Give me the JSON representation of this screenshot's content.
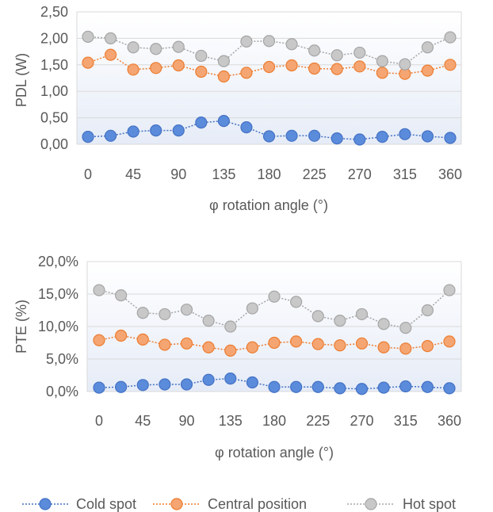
{
  "chart_data": [
    {
      "type": "line",
      "xlabel": "φ rotation angle (°)",
      "ylabel": "PDL (W)",
      "ylim": [
        0,
        2.5
      ],
      "yticks": [
        "0,00",
        "0,50",
        "1,00",
        "1,50",
        "2,00",
        "2,50"
      ],
      "xticks": [
        "0",
        "45",
        "90",
        "135",
        "180",
        "225",
        "270",
        "315",
        "360"
      ],
      "x": [
        0,
        22.5,
        45,
        67.5,
        90,
        112.5,
        135,
        157.5,
        180,
        202.5,
        225,
        247.5,
        270,
        292.5,
        315,
        337.5,
        360
      ],
      "grid": true,
      "series": [
        {
          "name": "Cold spot",
          "values": [
            0.14,
            0.16,
            0.24,
            0.26,
            0.26,
            0.41,
            0.44,
            0.32,
            0.15,
            0.16,
            0.16,
            0.11,
            0.09,
            0.14,
            0.19,
            0.15,
            0.12
          ]
        },
        {
          "name": "Central position",
          "values": [
            1.54,
            1.69,
            1.41,
            1.44,
            1.49,
            1.37,
            1.28,
            1.35,
            1.46,
            1.49,
            1.43,
            1.42,
            1.47,
            1.35,
            1.33,
            1.39,
            1.5
          ]
        },
        {
          "name": "Hot spot",
          "values": [
            2.03,
            2.0,
            1.83,
            1.8,
            1.84,
            1.67,
            1.57,
            1.94,
            1.95,
            1.89,
            1.77,
            1.68,
            1.73,
            1.57,
            1.51,
            1.83,
            2.02
          ]
        }
      ]
    },
    {
      "type": "line",
      "xlabel": "φ rotation angle (°)",
      "ylabel": "PTE (%)",
      "ylim": [
        0,
        20
      ],
      "yticks": [
        "0,0%",
        "5,0%",
        "10,0%",
        "15,0%",
        "20,0%"
      ],
      "xticks": [
        "0",
        "45",
        "90",
        "135",
        "180",
        "225",
        "270",
        "315",
        "360"
      ],
      "x": [
        0,
        22.5,
        45,
        67.5,
        90,
        112.5,
        135,
        157.5,
        180,
        202.5,
        225,
        247.5,
        270,
        292.5,
        315,
        337.5,
        360
      ],
      "grid": true,
      "series": [
        {
          "name": "Cold spot",
          "values": [
            0.6,
            0.7,
            1.0,
            1.1,
            1.1,
            1.8,
            2.0,
            1.4,
            0.7,
            0.7,
            0.7,
            0.5,
            0.4,
            0.6,
            0.8,
            0.7,
            0.5
          ]
        },
        {
          "name": "Central position",
          "values": [
            7.9,
            8.6,
            8.0,
            7.2,
            7.4,
            6.8,
            6.3,
            6.8,
            7.5,
            7.7,
            7.3,
            7.1,
            7.4,
            6.8,
            6.6,
            7.0,
            7.7
          ]
        },
        {
          "name": "Hot spot",
          "values": [
            15.6,
            14.8,
            12.1,
            11.9,
            12.6,
            10.9,
            10.0,
            12.8,
            14.6,
            13.8,
            11.6,
            10.9,
            11.9,
            10.4,
            9.8,
            12.5,
            15.6
          ]
        }
      ]
    }
  ],
  "legend": {
    "placement": "bottom",
    "items": [
      {
        "label": "Cold spot",
        "color": "#4472C4",
        "fill": "#5B8BDB"
      },
      {
        "label": "Central position",
        "color": "#ED7D31",
        "fill": "#F4A572"
      },
      {
        "label": "Hot spot",
        "color": "#A5A5A5",
        "fill": "#C8C8C8"
      }
    ]
  },
  "colors": {
    "cold_line": "#4472C4",
    "cold_fill": "#5B8BDB",
    "central_line": "#ED7D31",
    "central_fill": "#F4A572",
    "hot_line": "#A5A5A5",
    "hot_fill": "#C8C8C8",
    "grid": "#D9D9D9",
    "text": "#595959"
  }
}
